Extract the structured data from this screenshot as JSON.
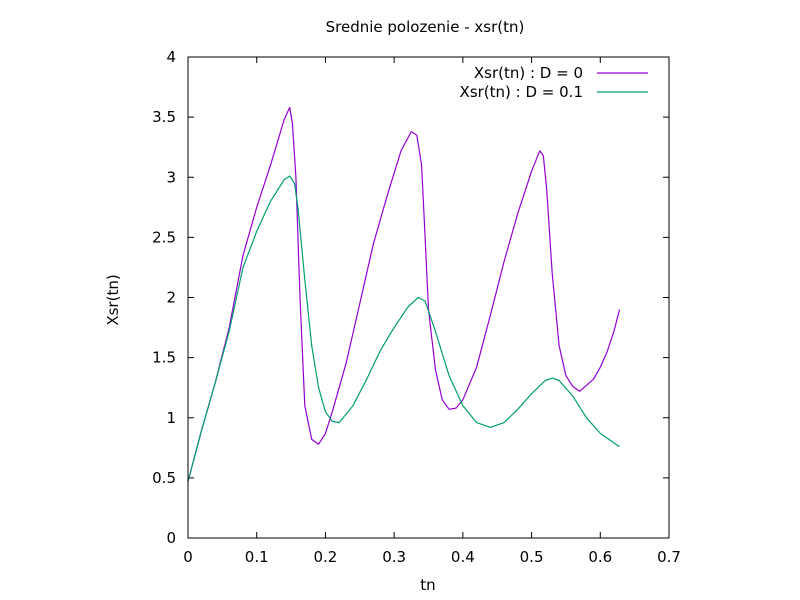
{
  "chart_data": {
    "type": "line",
    "title": "Srednie polozenie - xsr(tn)",
    "xlabel": "tn",
    "ylabel": "Xsr(tn)",
    "xlim": [
      0,
      0.7
    ],
    "ylim": [
      0,
      4
    ],
    "xticks": [
      "0",
      "0.1",
      "0.2",
      "0.3",
      "0.4",
      "0.5",
      "0.6",
      "0.7"
    ],
    "yticks": [
      "0",
      "0.5",
      "1",
      "1.5",
      "2",
      "2.5",
      "3",
      "3.5",
      "4"
    ],
    "xtick_values": [
      0,
      0.1,
      0.2,
      0.3,
      0.4,
      0.5,
      0.6,
      0.7
    ],
    "ytick_values": [
      0,
      0.5,
      1,
      1.5,
      2,
      2.5,
      3,
      3.5,
      4
    ],
    "grid": false,
    "legend_position": "top-right",
    "series": [
      {
        "name": "Xsr(tn) : D = 0",
        "color": "#9400d3",
        "x": [
          0,
          0.02,
          0.04,
          0.06,
          0.08,
          0.1,
          0.12,
          0.14,
          0.148,
          0.152,
          0.157,
          0.163,
          0.17,
          0.18,
          0.19,
          0.2,
          0.21,
          0.23,
          0.25,
          0.27,
          0.29,
          0.31,
          0.325,
          0.333,
          0.34,
          0.345,
          0.35,
          0.36,
          0.37,
          0.38,
          0.39,
          0.4,
          0.42,
          0.44,
          0.46,
          0.48,
          0.5,
          0.512,
          0.517,
          0.522,
          0.53,
          0.54,
          0.55,
          0.56,
          0.57,
          0.58,
          0.59,
          0.6,
          0.61,
          0.62,
          0.628
        ],
        "y": [
          0.47,
          0.9,
          1.3,
          1.75,
          2.35,
          2.75,
          3.1,
          3.48,
          3.58,
          3.45,
          3.0,
          2.0,
          1.1,
          0.82,
          0.78,
          0.87,
          1.05,
          1.45,
          1.95,
          2.45,
          2.85,
          3.22,
          3.38,
          3.35,
          3.1,
          2.5,
          1.9,
          1.4,
          1.15,
          1.07,
          1.08,
          1.15,
          1.42,
          1.85,
          2.3,
          2.7,
          3.05,
          3.22,
          3.18,
          2.9,
          2.2,
          1.6,
          1.35,
          1.26,
          1.22,
          1.27,
          1.32,
          1.42,
          1.55,
          1.72,
          1.9
        ]
      },
      {
        "name": "Xsr(tn) : D = 0.1",
        "color": "#009e73",
        "x": [
          0,
          0.02,
          0.04,
          0.06,
          0.08,
          0.1,
          0.12,
          0.14,
          0.148,
          0.155,
          0.16,
          0.17,
          0.18,
          0.19,
          0.2,
          0.21,
          0.22,
          0.24,
          0.26,
          0.28,
          0.3,
          0.32,
          0.335,
          0.345,
          0.36,
          0.38,
          0.4,
          0.42,
          0.44,
          0.46,
          0.48,
          0.5,
          0.52,
          0.53,
          0.54,
          0.56,
          0.58,
          0.6,
          0.62,
          0.628
        ],
        "y": [
          0.47,
          0.9,
          1.3,
          1.72,
          2.25,
          2.55,
          2.8,
          2.98,
          3.01,
          2.95,
          2.75,
          2.15,
          1.6,
          1.25,
          1.05,
          0.97,
          0.96,
          1.1,
          1.32,
          1.56,
          1.75,
          1.92,
          2.0,
          1.97,
          1.72,
          1.35,
          1.1,
          0.96,
          0.92,
          0.96,
          1.07,
          1.2,
          1.31,
          1.33,
          1.31,
          1.18,
          1.0,
          0.87,
          0.79,
          0.76
        ]
      }
    ]
  }
}
